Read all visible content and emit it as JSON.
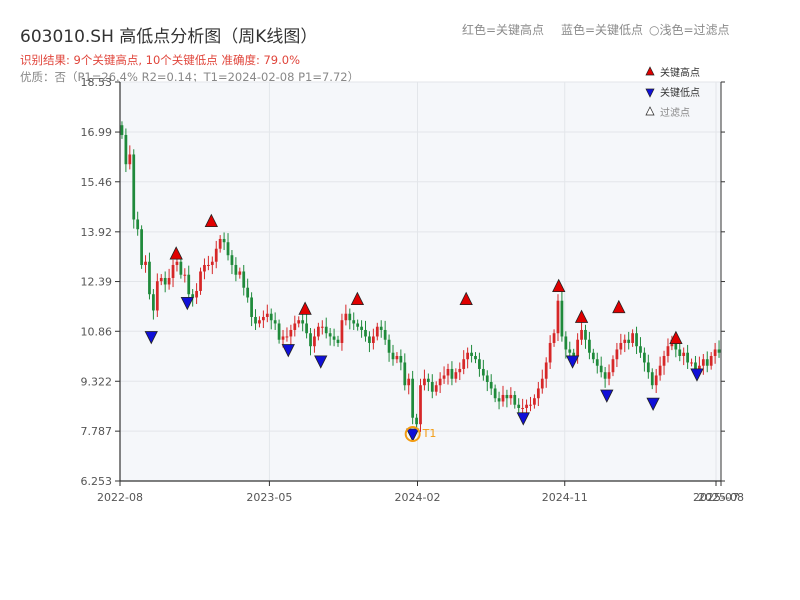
{
  "header": {
    "title": "603010.SH 高低点分析图（周K线图）",
    "result_line": "识别结果: 9个关键高点, 10个关键低点  准确度: 79.0%",
    "quality_line": "优质：否（P1=26.4%  R2=0.14；T1=2024-02-08 P1=7.72）",
    "legend_red": "红色=关键高点",
    "legend_blue": "蓝色=关键低点",
    "legend_light": "浅色=过滤点"
  },
  "colors": {
    "up": "#d62728",
    "down": "#1f8a3b",
    "high": "#e00000",
    "low": "#1010d8",
    "t1": "#f39c12",
    "plot_bg": "#f5f7fa",
    "grid": "#e3e6ea"
  },
  "chart_data": {
    "type": "candlestick",
    "y_ticks": [
      "6.253",
      "7.787",
      "9.322",
      "10.86",
      "12.39",
      "13.92",
      "15.46",
      "16.99",
      "18.53"
    ],
    "ylim": [
      6.253,
      18.53
    ],
    "x_ticks": [
      {
        "label": "2022-08",
        "t": 0.0
      },
      {
        "label": "2023-05",
        "t": 0.2486
      },
      {
        "label": "2024-02",
        "t": 0.495
      },
      {
        "label": "2024-11",
        "t": 0.74
      },
      {
        "label": "2025-07",
        "t": 0.9917
      },
      {
        "label": "2025-08",
        "t": 1.0
      }
    ],
    "weekly_close": [
      16.9,
      16.0,
      16.3,
      14.3,
      14.0,
      12.9,
      13.0,
      12.0,
      11.5,
      12.4,
      12.5,
      12.3,
      12.5,
      12.9,
      13.0,
      12.6,
      12.6,
      12.0,
      11.9,
      12.1,
      12.7,
      12.9,
      12.9,
      13.0,
      13.4,
      13.7,
      13.6,
      13.2,
      12.9,
      12.6,
      12.7,
      12.2,
      11.9,
      11.3,
      11.1,
      11.2,
      11.3,
      11.4,
      11.2,
      11.1,
      10.6,
      10.7,
      10.7,
      10.9,
      11.1,
      11.2,
      11.1,
      10.8,
      10.4,
      10.7,
      11.0,
      11.0,
      10.8,
      10.7,
      10.6,
      10.5,
      11.2,
      11.4,
      11.2,
      11.1,
      11.0,
      10.9,
      10.7,
      10.5,
      10.7,
      11.0,
      10.9,
      10.6,
      10.2,
      10.0,
      10.1,
      9.9,
      9.2,
      9.4,
      8.2,
      8.0,
      9.2,
      9.4,
      9.3,
      9.0,
      9.2,
      9.4,
      9.5,
      9.7,
      9.4,
      9.6,
      9.7,
      10.0,
      10.2,
      10.1,
      10.0,
      9.7,
      9.5,
      9.3,
      9.1,
      8.8,
      8.7,
      8.9,
      8.8,
      8.9,
      8.6,
      8.5,
      8.5,
      8.6,
      8.6,
      8.8,
      9.1,
      9.4,
      9.9,
      10.5,
      10.8,
      11.8,
      10.7,
      10.3,
      10.2,
      10.1,
      10.6,
      10.9,
      10.6,
      10.2,
      10.0,
      9.8,
      9.6,
      9.4,
      9.6,
      10.0,
      10.3,
      10.5,
      10.6,
      10.5,
      10.8,
      10.4,
      10.2,
      9.9,
      9.6,
      9.2,
      9.5,
      9.8,
      10.1,
      10.4,
      10.6,
      10.3,
      10.1,
      10.2,
      9.9,
      9.9,
      9.7,
      9.8,
      10.0,
      9.8,
      10.1,
      10.3,
      10.2
    ],
    "key_highs": [
      {
        "t": 0.0935,
        "price": 13.05
      },
      {
        "t": 0.152,
        "price": 14.05
      },
      {
        "t": 0.308,
        "price": 11.35
      },
      {
        "t": 0.395,
        "price": 11.65
      },
      {
        "t": 0.576,
        "price": 11.65
      },
      {
        "t": 0.73,
        "price": 12.05
      },
      {
        "t": 0.768,
        "price": 11.1
      },
      {
        "t": 0.83,
        "price": 11.4
      },
      {
        "t": 0.925,
        "price": 10.45
      }
    ],
    "key_lows": [
      {
        "t": 0.052,
        "price": 10.7
      },
      {
        "t": 0.112,
        "price": 11.75
      },
      {
        "t": 0.28,
        "price": 10.3
      },
      {
        "t": 0.334,
        "price": 9.95
      },
      {
        "t": 0.487,
        "price": 7.7
      },
      {
        "t": 0.671,
        "price": 8.2
      },
      {
        "t": 0.753,
        "price": 9.95
      },
      {
        "t": 0.81,
        "price": 8.9
      },
      {
        "t": 0.887,
        "price": 8.65
      },
      {
        "t": 0.96,
        "price": 9.55
      }
    ],
    "t1": {
      "t": 0.487,
      "price": 7.7,
      "label": "T1"
    },
    "legend": [
      "关键高点",
      "关键低点",
      "过滤点"
    ]
  }
}
